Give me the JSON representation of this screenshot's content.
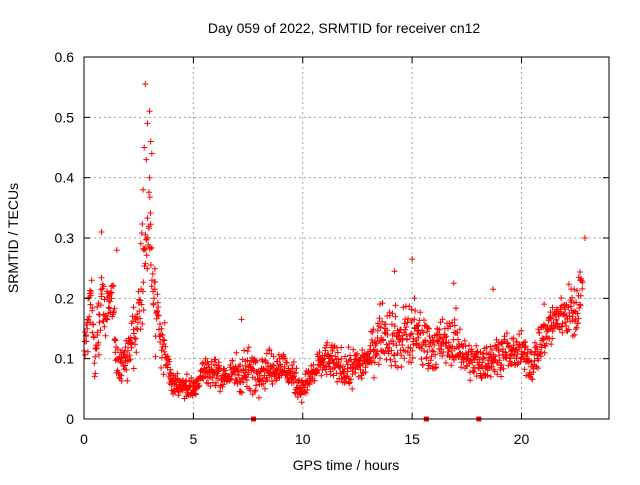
{
  "chart_data": {
    "type": "scatter",
    "title": "Day 059 of 2022, SRMTID for receiver cn12",
    "xlabel": "GPS time / hours",
    "ylabel": "SRMTID / TECUs",
    "xlim": [
      0,
      24
    ],
    "ylim": [
      0,
      0.6
    ],
    "xticks": [
      0,
      5,
      10,
      15,
      20
    ],
    "yticks": [
      0,
      0.1,
      0.2,
      0.3,
      0.4,
      0.5,
      0.6
    ],
    "grid": true,
    "marker": "+",
    "series_color": "#ff0000",
    "series": [
      {
        "name": "SRMTID",
        "profile": [
          [
            0.0,
            0.13,
            0.04
          ],
          [
            0.3,
            0.18,
            0.05
          ],
          [
            0.5,
            0.1,
            0.04
          ],
          [
            0.8,
            0.2,
            0.07
          ],
          [
            1.0,
            0.18,
            0.05
          ],
          [
            1.3,
            0.22,
            0.05
          ],
          [
            1.5,
            0.08,
            0.03
          ],
          [
            2.0,
            0.1,
            0.04
          ],
          [
            2.5,
            0.18,
            0.07
          ],
          [
            2.8,
            0.3,
            0.12
          ],
          [
            3.0,
            0.32,
            0.12
          ],
          [
            3.2,
            0.22,
            0.08
          ],
          [
            3.5,
            0.13,
            0.05
          ],
          [
            4.0,
            0.06,
            0.02
          ],
          [
            5.0,
            0.05,
            0.02
          ],
          [
            5.5,
            0.08,
            0.03
          ],
          [
            6.5,
            0.07,
            0.02
          ],
          [
            7.2,
            0.08,
            0.04
          ],
          [
            8.0,
            0.08,
            0.03
          ],
          [
            9.0,
            0.09,
            0.03
          ],
          [
            10.0,
            0.05,
            0.02
          ],
          [
            11.0,
            0.1,
            0.03
          ],
          [
            12.0,
            0.08,
            0.03
          ],
          [
            13.0,
            0.1,
            0.03
          ],
          [
            13.7,
            0.15,
            0.05
          ],
          [
            14.3,
            0.13,
            0.05
          ],
          [
            15.0,
            0.14,
            0.06
          ],
          [
            16.0,
            0.12,
            0.04
          ],
          [
            17.0,
            0.13,
            0.04
          ],
          [
            17.5,
            0.1,
            0.03
          ],
          [
            18.2,
            0.09,
            0.03
          ],
          [
            19.0,
            0.11,
            0.03
          ],
          [
            20.0,
            0.11,
            0.03
          ],
          [
            20.5,
            0.09,
            0.03
          ],
          [
            21.0,
            0.14,
            0.04
          ],
          [
            21.5,
            0.16,
            0.04
          ],
          [
            22.0,
            0.18,
            0.04
          ],
          [
            22.5,
            0.17,
            0.05
          ],
          [
            22.8,
            0.23,
            0.04
          ]
        ],
        "peaks": [
          [
            2.8,
            0.555
          ],
          [
            3.0,
            0.51
          ],
          [
            2.9,
            0.49
          ],
          [
            3.05,
            0.46
          ],
          [
            2.75,
            0.45
          ],
          [
            3.1,
            0.44
          ],
          [
            2.85,
            0.43
          ],
          [
            3.0,
            0.4
          ],
          [
            2.7,
            0.38
          ],
          [
            0.8,
            0.31
          ],
          [
            22.9,
            0.3
          ],
          [
            15.0,
            0.265
          ],
          [
            14.2,
            0.245
          ],
          [
            16.9,
            0.225
          ],
          [
            18.7,
            0.215
          ],
          [
            1.5,
            0.28
          ],
          [
            7.2,
            0.165
          ]
        ],
        "base_markers": [
          7.75,
          15.65,
          18.05
        ]
      }
    ]
  }
}
